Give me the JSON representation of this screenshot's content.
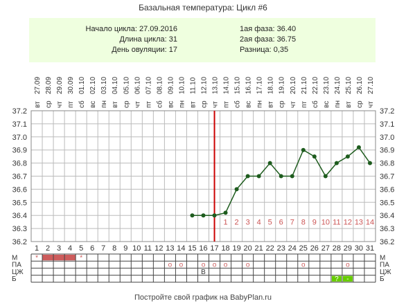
{
  "title": "Базальная температура: Цикл #6",
  "info": {
    "cycle_start": "Начало цикла: 27.09.2016",
    "cycle_length": "Длина цикла: 31",
    "ovulation_day": "День овуляции: 17",
    "phase1": "1ая фаза: 36.40",
    "phase2": "2ая фаза: 36.75",
    "difference": "Разница: 0,35"
  },
  "footer": "Постройте свой график на BabyPlan.ru",
  "colors": {
    "line": "#1e5c1e",
    "ovulation": "#cc0000",
    "post_ovulation_label": "#cc5555",
    "grid": "#bbbbbb",
    "bar_fill": "#cd5c5c",
    "green_fill": "#66cc00"
  },
  "chart_data": {
    "type": "line",
    "title": "Базальная температура: Цикл #6",
    "ylim": [
      36.2,
      37.2
    ],
    "y_ticks": [
      "37.2",
      "37.1",
      "37.0",
      "36.9",
      "36.8",
      "36.7",
      "36.6",
      "36.5",
      "36.4",
      "36.3",
      "36.2"
    ],
    "dates": [
      "27.09",
      "28.09",
      "29.09",
      "30.09",
      "01.10",
      "02.10",
      "03.10",
      "04.10",
      "05.10",
      "06.10",
      "07.10",
      "08.10",
      "09.10",
      "10.10",
      "11.10",
      "12.10",
      "13.10",
      "14.10",
      "15.10",
      "16.10",
      "17.10",
      "18.10",
      "19.10",
      "20.10",
      "21.10",
      "22.10",
      "23.10",
      "24.10",
      "25.10",
      "26.10",
      "27.10"
    ],
    "weekdays": [
      "вт",
      "ср",
      "чт",
      "пт",
      "сб",
      "вс",
      "пн",
      "вт",
      "ср",
      "чт",
      "пт",
      "сб",
      "вс",
      "пн",
      "вт",
      "ср",
      "чт",
      "пт",
      "сб",
      "вс",
      "пн",
      "вт",
      "ср",
      "чт",
      "пт",
      "сб",
      "вс",
      "пн",
      "вт",
      "ср",
      "чт"
    ],
    "days": [
      "1",
      "2",
      "3",
      "4",
      "5",
      "6",
      "7",
      "8",
      "9",
      "10",
      "11",
      "12",
      "13",
      "14",
      "15",
      "16",
      "17",
      "18",
      "19",
      "20",
      "21",
      "22",
      "23",
      "24",
      "25",
      "26",
      "27",
      "28",
      "29",
      "30",
      "31"
    ],
    "x": [
      15,
      16,
      17,
      18,
      19,
      20,
      21,
      22,
      23,
      24,
      25,
      26,
      27,
      28,
      29,
      30,
      31
    ],
    "values": [
      36.4,
      36.4,
      36.4,
      36.42,
      36.6,
      36.7,
      36.7,
      36.8,
      36.7,
      36.7,
      36.9,
      36.85,
      36.7,
      36.8,
      36.85,
      36.92,
      36.8
    ],
    "ovulation_day": 17,
    "post_ovulation_labels": [
      "1",
      "2",
      "3",
      "4",
      "5",
      "6",
      "7",
      "8",
      "9",
      "10",
      "11",
      "12",
      "13",
      "14"
    ],
    "rows": [
      {
        "label": "М",
        "cells": [
          {
            "day": 1,
            "mark": "*"
          },
          {
            "day": 5,
            "mark": "*"
          }
        ],
        "bar_days": [
          2,
          4
        ]
      },
      {
        "label": "ПА",
        "cells": [
          {
            "day": 13,
            "mark": "o"
          },
          {
            "day": 14,
            "mark": "o"
          },
          {
            "day": 16,
            "mark": "o"
          },
          {
            "day": 17,
            "mark": "o"
          },
          {
            "day": 18,
            "mark": "o"
          },
          {
            "day": 20,
            "mark": "o"
          },
          {
            "day": 25,
            "mark": "o"
          },
          {
            "day": 29,
            "mark": "o"
          }
        ]
      },
      {
        "label": "ЦЖ",
        "cells": [
          {
            "day": 16,
            "mark": "В"
          }
        ]
      },
      {
        "label": "Б",
        "cells": [
          {
            "day": 28,
            "mark": "?",
            "fill": true
          },
          {
            "day": 29,
            "mark": "-",
            "fill": true
          }
        ]
      }
    ]
  }
}
